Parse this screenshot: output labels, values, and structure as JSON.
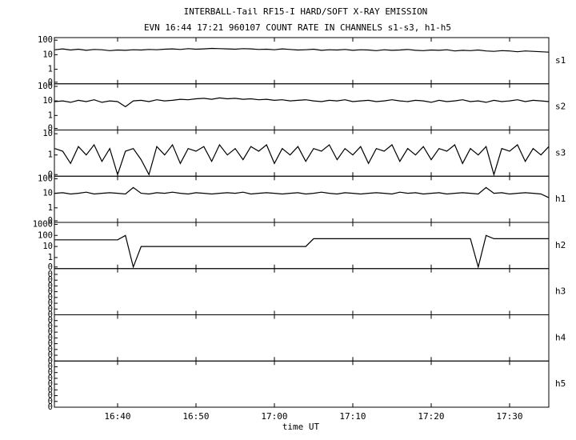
{
  "chart_data": {
    "type": "line",
    "title": "INTERBALL-Tail RF15-I HARD/SOFT X-RAY EMISSION",
    "subtitle": "EVN 16:44 17:21 960107  COUNT RATE IN CHANNELS s1-s3, h1-h5",
    "xlabel": "time UT",
    "color": "#000000",
    "xlim": [
      31.94,
      95
    ],
    "xticks": [
      {
        "value": 40,
        "label": "16:40"
      },
      {
        "value": 50,
        "label": "16:50"
      },
      {
        "value": 60,
        "label": "17:00"
      },
      {
        "value": 70,
        "label": "17:10"
      },
      {
        "value": 80,
        "label": "17:20"
      },
      {
        "value": 90,
        "label": "17:30"
      }
    ],
    "x": [
      32,
      33,
      34,
      35,
      36,
      37,
      38,
      39,
      40,
      41,
      42,
      43,
      44,
      45,
      46,
      47,
      48,
      49,
      50,
      51,
      52,
      53,
      54,
      55,
      56,
      57,
      58,
      59,
      60,
      61,
      62,
      63,
      64,
      65,
      66,
      67,
      68,
      69,
      70,
      71,
      72,
      73,
      74,
      75,
      76,
      77,
      78,
      79,
      80,
      81,
      82,
      83,
      84,
      85,
      86,
      87,
      88,
      89,
      90,
      91,
      92,
      93,
      94,
      95
    ],
    "panels": [
      {
        "name": "s1",
        "log": true,
        "ylim": [
          0,
          150
        ],
        "yticks": [
          0,
          1,
          10,
          100
        ],
        "values": [
          22,
          25,
          21,
          24,
          20,
          23,
          22,
          19,
          21,
          20,
          22,
          21,
          23,
          22,
          24,
          25,
          23,
          26,
          24,
          25,
          27,
          26,
          25,
          24,
          26,
          25,
          23,
          24,
          22,
          25,
          23,
          21,
          22,
          24,
          20,
          22,
          21,
          23,
          20,
          22,
          21,
          19,
          22,
          20,
          21,
          23,
          20,
          19,
          21,
          20,
          22,
          18,
          20,
          19,
          21,
          18,
          17,
          19,
          18,
          16,
          18,
          17,
          16,
          15
        ]
      },
      {
        "name": "s2",
        "log": true,
        "ylim": [
          0,
          150
        ],
        "yticks": [
          0,
          1,
          10,
          100
        ],
        "values": [
          9,
          10,
          8,
          11,
          9,
          12,
          8,
          10,
          9,
          4,
          10,
          11,
          9,
          12,
          10,
          11,
          13,
          12,
          14,
          15,
          13,
          16,
          14,
          15,
          13,
          14,
          12,
          13,
          11,
          12,
          10,
          11,
          12,
          10,
          9,
          11,
          10,
          12,
          9,
          10,
          11,
          9,
          10,
          12,
          10,
          9,
          11,
          10,
          8,
          11,
          9,
          10,
          12,
          9,
          10,
          8,
          11,
          9,
          10,
          12,
          9,
          11,
          10,
          9
        ]
      },
      {
        "name": "s3",
        "log": true,
        "ylim": [
          0,
          15
        ],
        "yticks": [
          0,
          1,
          10
        ],
        "values": [
          2,
          1.5,
          0.4,
          2.5,
          1,
          3,
          0.5,
          2,
          0,
          1.5,
          2,
          0.6,
          0,
          2.5,
          1,
          3,
          0.4,
          2,
          1.5,
          2.5,
          0.5,
          3,
          1,
          2,
          0.6,
          2.5,
          1.5,
          3,
          0.4,
          2,
          1,
          2.5,
          0.5,
          2,
          1.5,
          3,
          0.6,
          2,
          1,
          2.5,
          0.4,
          2,
          1.5,
          3,
          0.5,
          2,
          1,
          2.5,
          0.6,
          2,
          1.5,
          3,
          0.4,
          2,
          1,
          2.5,
          0,
          2,
          1.5,
          3,
          0.5,
          2,
          1,
          2.5
        ]
      },
      {
        "name": "h1",
        "log": true,
        "ylim": [
          0,
          150
        ],
        "yticks": [
          0,
          1,
          10,
          100
        ],
        "values": [
          10,
          11,
          9,
          10,
          12,
          9,
          10,
          11,
          10,
          9,
          25,
          10,
          9,
          11,
          10,
          12,
          10,
          9,
          11,
          10,
          9,
          10,
          11,
          10,
          12,
          9,
          10,
          11,
          10,
          9,
          10,
          11,
          9,
          10,
          12,
          10,
          9,
          11,
          10,
          9,
          10,
          11,
          10,
          9,
          12,
          10,
          11,
          9,
          10,
          11,
          9,
          10,
          11,
          10,
          9,
          25,
          10,
          11,
          9,
          10,
          11,
          10,
          9,
          5
        ]
      },
      {
        "name": "h2",
        "log": true,
        "ylim": [
          0,
          1500
        ],
        "yticks": [
          0,
          1,
          10,
          100,
          1000
        ],
        "values": [
          40,
          40,
          40,
          40,
          40,
          40,
          40,
          40,
          40,
          100,
          0,
          10,
          10,
          10,
          10,
          10,
          10,
          10,
          10,
          10,
          10,
          10,
          10,
          10,
          10,
          10,
          10,
          10,
          10,
          10,
          10,
          10,
          10,
          50,
          50,
          50,
          50,
          50,
          50,
          50,
          50,
          50,
          50,
          50,
          50,
          50,
          50,
          50,
          50,
          50,
          50,
          50,
          50,
          50,
          0,
          100,
          50,
          50,
          50,
          50,
          50,
          50,
          50,
          50
        ]
      },
      {
        "name": "h3",
        "log": false,
        "ylim": [
          0,
          0.4
        ],
        "yticks": [
          0,
          {
            "value": 0.05,
            "label": "0"
          },
          {
            "value": 0.1,
            "label": "0"
          },
          {
            "value": 0.15,
            "label": "0"
          },
          {
            "value": 0.2,
            "label": "0"
          },
          {
            "value": 0.25,
            "label": "0"
          },
          {
            "value": 0.3,
            "label": "0"
          },
          {
            "value": 0.35,
            "label": "0"
          }
        ]
      },
      {
        "name": "h4",
        "log": false,
        "ylim": [
          0,
          0.4
        ],
        "yticks": [
          0,
          {
            "value": 0.05,
            "label": "0"
          },
          {
            "value": 0.1,
            "label": "0"
          },
          {
            "value": 0.15,
            "label": "0"
          },
          {
            "value": 0.2,
            "label": "0"
          },
          {
            "value": 0.25,
            "label": "0"
          },
          {
            "value": 0.3,
            "label": "0"
          },
          {
            "value": 0.35,
            "label": "0"
          }
        ]
      },
      {
        "name": "h5",
        "log": false,
        "ylim": [
          0,
          0.4
        ],
        "yticks": [
          0,
          {
            "value": 0.05,
            "label": "0"
          },
          {
            "value": 0.1,
            "label": "0"
          },
          {
            "value": 0.15,
            "label": "0"
          },
          {
            "value": 0.2,
            "label": "0"
          },
          {
            "value": 0.25,
            "label": "0"
          },
          {
            "value": 0.3,
            "label": "0"
          },
          {
            "value": 0.35,
            "label": "0"
          }
        ]
      }
    ]
  }
}
